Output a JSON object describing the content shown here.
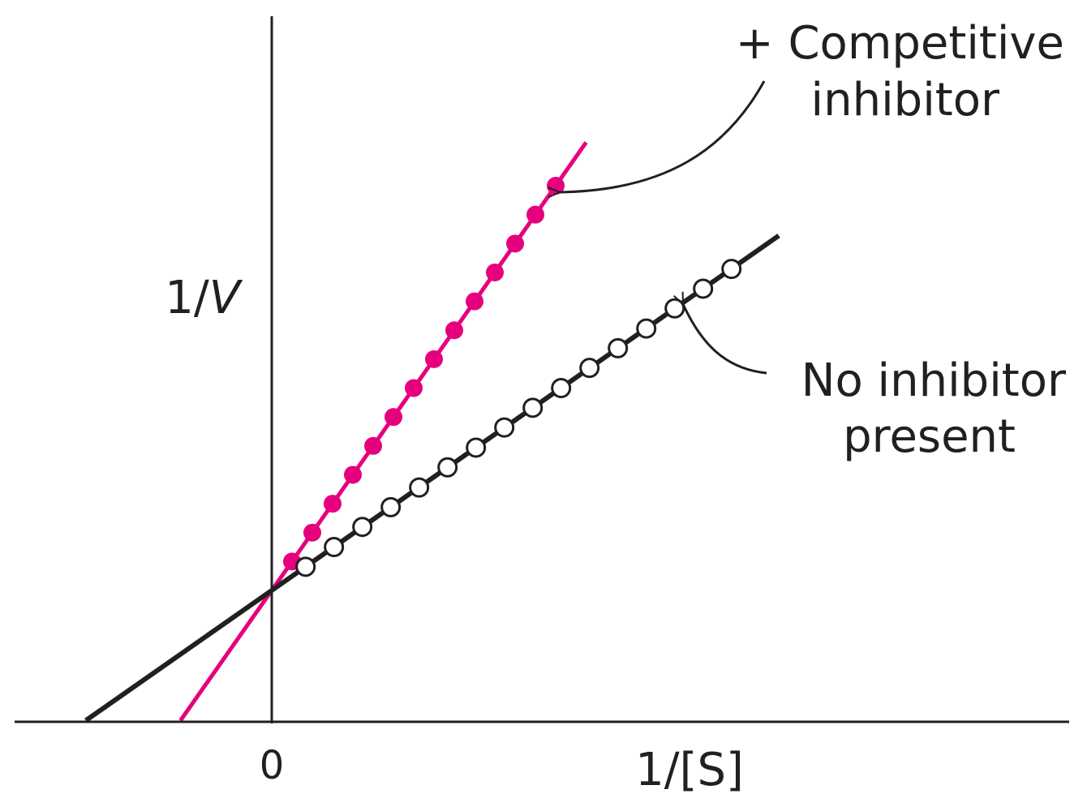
{
  "chart_data": {
    "type": "line",
    "xlabel": "1/[S]",
    "ylabel_prefix": "1/",
    "ylabel_var": "V",
    "x_tick_labels": [
      "0"
    ],
    "grid": false,
    "series": [
      {
        "key": "competitive",
        "color": "#e6007e",
        "marker": "filled-circle",
        "intercept": 3.0,
        "slope": 1.1,
        "x_line": [
          -2.7,
          9.3
        ],
        "x": [
          0.6,
          1.2,
          1.8,
          2.4,
          3.0,
          3.6,
          4.2,
          4.8,
          5.4,
          6.0,
          6.6,
          7.2,
          7.8,
          8.4
        ],
        "y": [
          3.66,
          4.32,
          4.98,
          5.64,
          6.3,
          6.96,
          7.62,
          8.28,
          8.94,
          9.6,
          10.26,
          10.92,
          11.58,
          12.24
        ]
      },
      {
        "key": "none",
        "color": "#231f20",
        "marker": "open-circle",
        "intercept": 3.0,
        "slope": 0.54,
        "x_line": [
          -5.5,
          15.0
        ],
        "x": [
          1.0,
          1.84,
          2.68,
          3.52,
          4.36,
          5.2,
          6.04,
          6.88,
          7.72,
          8.56,
          9.4,
          10.24,
          11.08,
          11.92,
          12.76,
          13.6
        ],
        "y": [
          3.54,
          3.99,
          4.45,
          4.9,
          5.35,
          5.81,
          6.26,
          6.72,
          7.17,
          7.62,
          8.08,
          8.53,
          8.98,
          9.44,
          9.89,
          10.34
        ]
      }
    ],
    "annotations": {
      "competitive_line1": "+ Competitive",
      "competitive_line2": "inhibitor",
      "none_line1": "No inhibitor",
      "none_line2": "present"
    }
  }
}
